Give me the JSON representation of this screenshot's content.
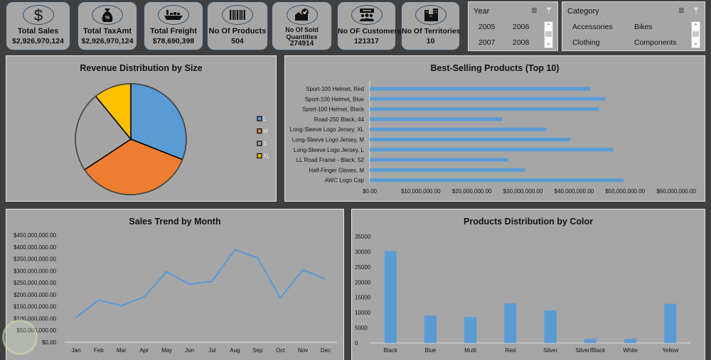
{
  "kpis": [
    {
      "id": "total-sales",
      "icon": "dollar-icon",
      "label": "Total Sales",
      "value": "$2,926,970,124"
    },
    {
      "id": "total-taxamt",
      "icon": "money-bag-percent-icon",
      "label": "Total TaxAmt",
      "value": "$2,926,970,124"
    },
    {
      "id": "total-freight",
      "icon": "cargo-ship-icon",
      "label": "Total Freight",
      "value": "$78,690,398"
    },
    {
      "id": "products",
      "icon": "barcode-icon",
      "label": "No Of Products",
      "value": "504"
    },
    {
      "id": "sold-quantities",
      "icon": "inbox-check-icon",
      "label": "No Of Sold Quantities",
      "value": "274914"
    },
    {
      "id": "customers",
      "icon": "customers-icon",
      "label": "No OF Customers",
      "value": "121317"
    },
    {
      "id": "territories",
      "icon": "buildings-icon",
      "label": "No Of Territories",
      "value": "10"
    }
  ],
  "slicers": {
    "year": {
      "title": "Year",
      "items": [
        "2005",
        "2006",
        "2007",
        "2008"
      ]
    },
    "category": {
      "title": "Category",
      "items": [
        "Accessories",
        "Bikes",
        "Clothing",
        "Components"
      ]
    }
  },
  "colors": {
    "blue": "#5b9bd5",
    "orange": "#ed7d31",
    "gray": "#a5a5a5",
    "yellow": "#ffc000",
    "panel": "#a6a6a6",
    "background": "#3f3f3f"
  },
  "chart_data": [
    {
      "type": "pie",
      "title": "Revenue Distribution by Size",
      "categories": [
        "L",
        "M",
        "S",
        "XL"
      ],
      "values": [
        31.0,
        34.7,
        23.4,
        10.9
      ],
      "unit": "percent (estimated)",
      "legend": "right"
    },
    {
      "type": "bar",
      "orientation": "horizontal",
      "title": "Best-Selling Products (Top 10)",
      "categories": [
        "Sport-100 Helmet, Red",
        "Sport-100 Helmet, Blue",
        "Sport-100 Helmet, Black",
        "Road-250 Black, 44",
        "Long-Sleeve Logo Jersey, XL",
        "Long-Sleeve Logo Jersey, M",
        "Long-Sleeve Logo Jersey, L",
        "LL Road Frame - Black, 52",
        "Half-Finger Gloves, M",
        "AWC Logo Cap"
      ],
      "values": [
        43200000,
        46200000,
        44900000,
        26000000,
        34600000,
        39200000,
        47700000,
        27100000,
        30400000,
        49700000
      ],
      "xlim": [
        0,
        60000000
      ],
      "xticks": [
        "$0.00",
        "$10,000,000.00",
        "$20,000,000.00",
        "$30,000,000.00",
        "$40,000,000.00",
        "$50,000,000.00",
        "$60,000,000.00"
      ],
      "legend": "none"
    },
    {
      "type": "line",
      "title": "Sales Trend by Month",
      "categories": [
        "Jan",
        "Feb",
        "Mar",
        "Apr",
        "May",
        "Jun",
        "Jul",
        "Aug",
        "Sep",
        "Oct",
        "Nov",
        "Dec"
      ],
      "values": [
        104000000,
        177000000,
        153000000,
        191000000,
        296000000,
        243000000,
        256000000,
        389000000,
        354000000,
        186000000,
        304000000,
        264000000
      ],
      "ylim": [
        0,
        450000000
      ],
      "yticks": [
        "$0.00",
        "$50,000,000.00",
        "$100,000,000.00",
        "$150,000,000.00",
        "$200,000,000.00",
        "$250,000,000.00",
        "$300,000,000.00",
        "$350,000,000.00",
        "$400,000,000.00",
        "$450,000,000.00"
      ],
      "grid": false,
      "legend": "none"
    },
    {
      "type": "bar",
      "title": "Products Distribution by Color",
      "categories": [
        "Black",
        "Blue",
        "Multi",
        "Red",
        "Silver",
        "Silver/Black",
        "White",
        "Yellow"
      ],
      "values": [
        30200,
        9000,
        8500,
        13000,
        10700,
        1300,
        1300,
        12900
      ],
      "ylim": [
        0,
        35000
      ],
      "yticks": [
        "0",
        "5000",
        "10000",
        "15000",
        "20000",
        "25000",
        "30000",
        "35000"
      ],
      "grid": false,
      "legend": "none"
    }
  ]
}
